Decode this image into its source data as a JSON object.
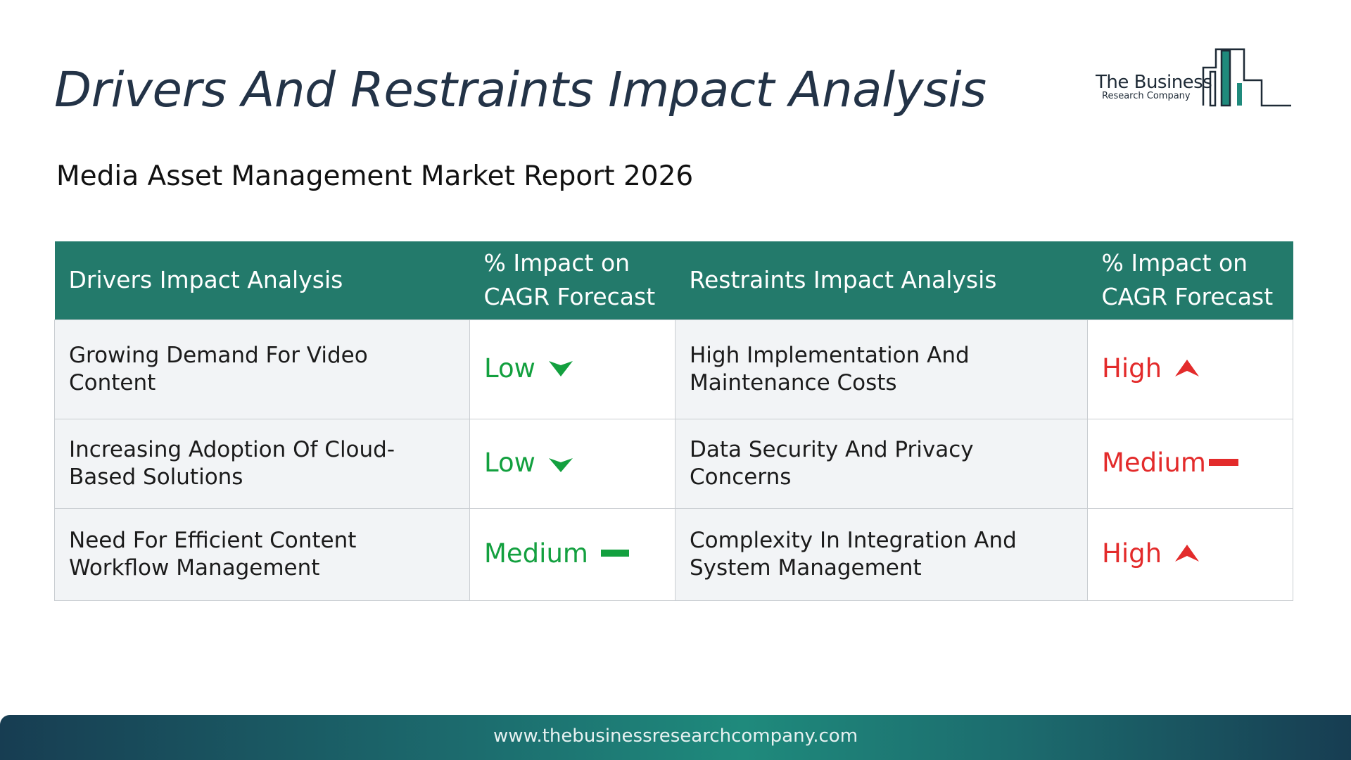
{
  "title": "Drivers And Restraints Impact Analysis",
  "subtitle": "Media Asset Management Market Report 2026",
  "logo": {
    "line1": "The Business",
    "line2": "Research Company"
  },
  "table": {
    "headers": {
      "drivers": "Drivers Impact Analysis",
      "drivers_impact": "% Impact on CAGR Forecast",
      "restraints": "Restraints Impact Analysis",
      "restraints_impact": "% Impact on CAGR Forecast"
    },
    "rows": [
      {
        "driver": "Growing Demand For Video Content",
        "driver_impact": "Low",
        "driver_icon": "arrow-down-icon",
        "restraint": "High Implementation And Maintenance Costs",
        "restraint_impact": "High",
        "restraint_icon": "arrow-up-icon"
      },
      {
        "driver": "Increasing Adoption Of Cloud-Based Solutions",
        "driver_impact": "Low",
        "driver_icon": "arrow-down-icon",
        "restraint": "Data Security And Privacy Concerns",
        "restraint_impact": "Medium",
        "restraint_icon": "dash-icon"
      },
      {
        "driver": "Need For Efficient Content Workflow Management",
        "driver_impact": "Medium",
        "driver_icon": "dash-icon",
        "restraint": "Complexity In Integration And System Management",
        "restraint_impact": "High",
        "restraint_icon": "arrow-up-icon"
      }
    ]
  },
  "footer": {
    "url": "www.thebusinessresearchcompany.com"
  },
  "colors": {
    "header_bg": "#237a6b",
    "driver_impact": "#13a03f",
    "restraint_impact": "#e32b2b",
    "title": "#233347"
  }
}
